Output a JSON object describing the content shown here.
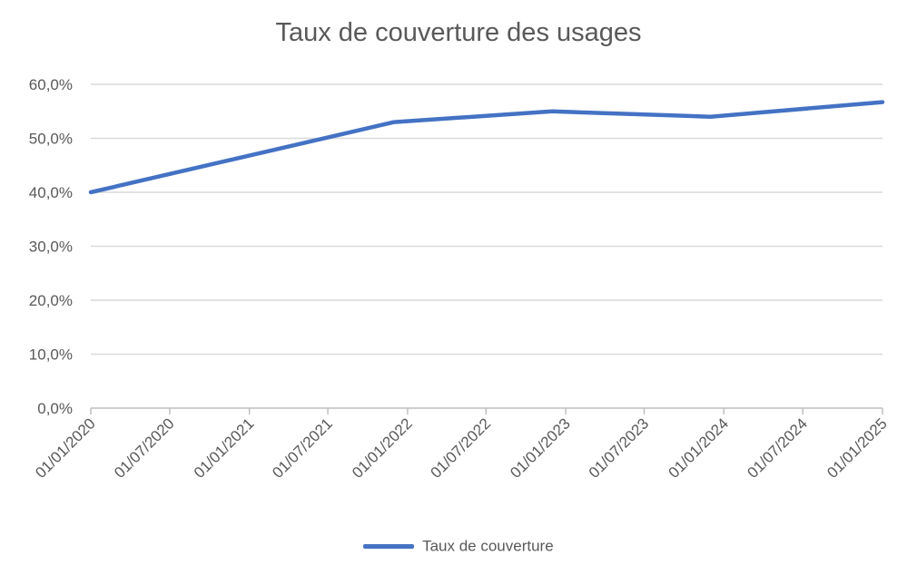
{
  "chart_data": {
    "type": "line",
    "title": "Taux de couverture des usages",
    "x": [
      "2020-01-01",
      "2021-12-01",
      "2022-12-01",
      "2023-12-01",
      "2025-01-01"
    ],
    "series": [
      {
        "name": "Taux de couverture",
        "color": "#4472c4",
        "values": [
          0.4,
          0.53,
          0.55,
          0.54,
          0.567
        ]
      }
    ],
    "x_ticks": [
      "01/01/2020",
      "01/07/2020",
      "01/01/2021",
      "01/07/2021",
      "01/01/2022",
      "01/07/2022",
      "01/01/2023",
      "01/07/2023",
      "01/01/2024",
      "01/07/2024",
      "01/01/2025"
    ],
    "x_tick_values": [
      "2020-01-01",
      "2020-07-01",
      "2021-01-01",
      "2021-07-01",
      "2022-01-01",
      "2022-07-01",
      "2023-01-01",
      "2023-07-01",
      "2024-01-01",
      "2024-07-01",
      "2025-01-01"
    ],
    "y_ticks": [
      "0,0%",
      "10,0%",
      "20,0%",
      "30,0%",
      "40,0%",
      "50,0%",
      "60,0%"
    ],
    "y_tick_values": [
      0,
      0.1,
      0.2,
      0.3,
      0.4,
      0.5,
      0.6
    ],
    "xlim": [
      "2020-01-01",
      "2025-01-01"
    ],
    "ylim": [
      0,
      0.6
    ],
    "xlabel": "",
    "ylabel": "",
    "grid": "horizontal",
    "legend": "bottom",
    "gridline_color": "#d9d9d9",
    "axis_color": "#bfbfbf"
  }
}
